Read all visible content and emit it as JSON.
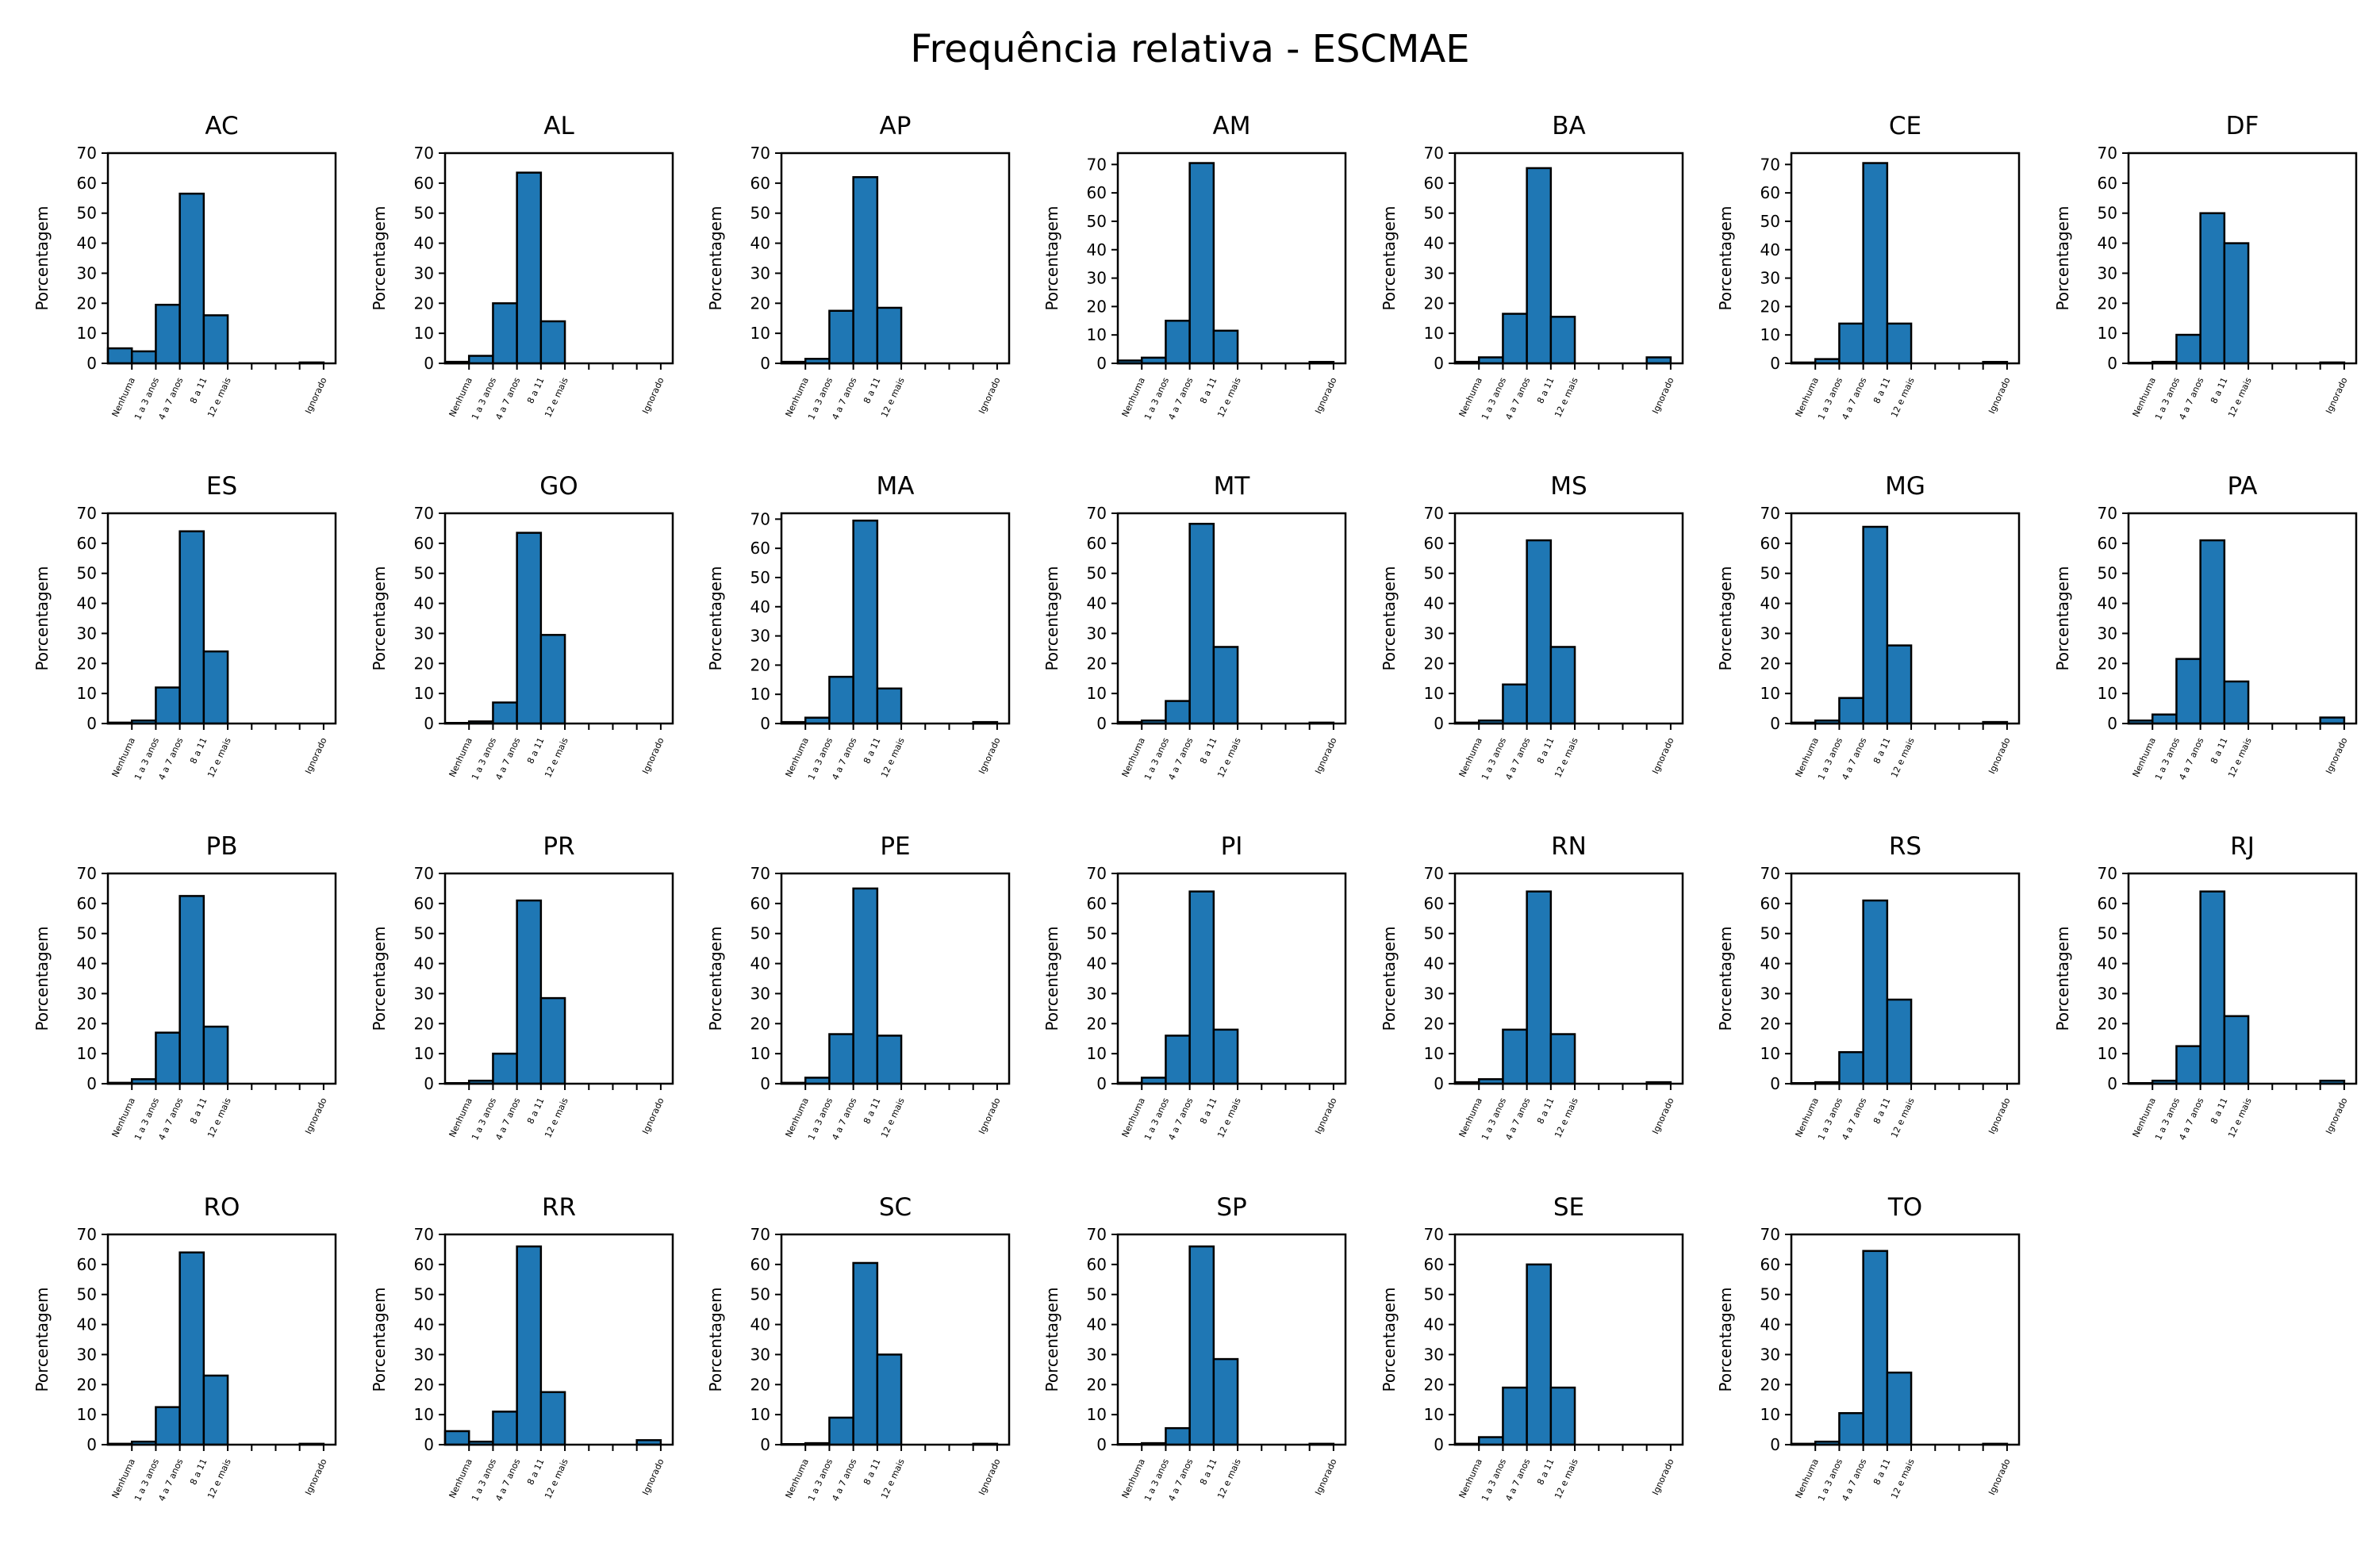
{
  "chart_data": {
    "type": "bar",
    "title": "Frequência relativa - ESCMAE",
    "ylabel": "Porcentagem",
    "xlabel": "",
    "bar_color": "#1f77b4",
    "edge_color": "#000000",
    "grid": false,
    "tick_labels": [
      "Nenhuma",
      "1 a 3 anos",
      "4 a 7 anos",
      "8 a 11",
      "12 e mais",
      "",
      "",
      "",
      "Ignorado"
    ],
    "tick_positions": [
      0,
      1,
      2,
      3,
      4,
      5,
      6,
      7,
      8
    ],
    "bar_positions": [
      -0.5,
      0.5,
      1.5,
      2.5,
      3.5,
      4.5,
      5.5,
      6.5,
      7.5
    ],
    "xlim": [
      -1,
      8.5
    ],
    "panels": [
      {
        "state": "AC",
        "ylim": [
          0,
          70
        ],
        "yticks": [
          0,
          10,
          20,
          30,
          40,
          50,
          60,
          70
        ],
        "values": [
          5,
          4,
          19.5,
          56.5,
          16,
          0,
          0,
          0,
          0.3
        ]
      },
      {
        "state": "AL",
        "ylim": [
          0,
          70
        ],
        "yticks": [
          0,
          10,
          20,
          30,
          40,
          50,
          60,
          70
        ],
        "values": [
          0.5,
          2.5,
          20,
          63.5,
          14,
          0,
          0,
          0,
          0
        ]
      },
      {
        "state": "AP",
        "ylim": [
          0,
          70
        ],
        "yticks": [
          0,
          10,
          20,
          30,
          40,
          50,
          60,
          70
        ],
        "values": [
          0.5,
          1.5,
          17.5,
          62,
          18.5,
          0,
          0,
          0,
          0
        ]
      },
      {
        "state": "AM",
        "ylim": [
          0,
          74
        ],
        "yticks": [
          0,
          10,
          20,
          30,
          40,
          50,
          60,
          70
        ],
        "values": [
          1,
          2,
          15,
          70.5,
          11.5,
          0,
          0,
          0,
          0.5
        ]
      },
      {
        "state": "BA",
        "ylim": [
          0,
          70
        ],
        "yticks": [
          0,
          10,
          20,
          30,
          40,
          50,
          60,
          70
        ],
        "values": [
          0.5,
          2,
          16.5,
          65,
          15.5,
          0,
          0,
          0,
          2
        ]
      },
      {
        "state": "CE",
        "ylim": [
          0,
          74
        ],
        "yticks": [
          0,
          10,
          20,
          30,
          40,
          50,
          60,
          70
        ],
        "values": [
          0.3,
          1.5,
          14,
          70.5,
          14,
          0,
          0,
          0,
          0.5
        ]
      },
      {
        "state": "DF",
        "ylim": [
          0,
          70
        ],
        "yticks": [
          0,
          10,
          20,
          30,
          40,
          50,
          60,
          70
        ],
        "values": [
          0.2,
          0.5,
          9.5,
          50,
          40,
          0,
          0,
          0,
          0.3
        ]
      },
      {
        "state": "ES",
        "ylim": [
          0,
          70
        ],
        "yticks": [
          0,
          10,
          20,
          30,
          40,
          50,
          60,
          70
        ],
        "values": [
          0.3,
          1,
          12,
          64,
          24,
          0,
          0,
          0,
          0
        ]
      },
      {
        "state": "GO",
        "ylim": [
          0,
          70
        ],
        "yticks": [
          0,
          10,
          20,
          30,
          40,
          50,
          60,
          70
        ],
        "values": [
          0.2,
          0.7,
          7,
          63.5,
          29.5,
          0,
          0,
          0,
          0
        ]
      },
      {
        "state": "MA",
        "ylim": [
          0,
          72
        ],
        "yticks": [
          0,
          10,
          20,
          30,
          40,
          50,
          60,
          70
        ],
        "values": [
          0.5,
          2,
          16,
          69.5,
          12,
          0,
          0,
          0,
          0.5
        ]
      },
      {
        "state": "MT",
        "ylim": [
          0,
          70
        ],
        "yticks": [
          0,
          10,
          20,
          30,
          40,
          50,
          60,
          70
        ],
        "values": [
          0.5,
          1,
          7.5,
          66.5,
          25.5,
          0,
          0,
          0,
          0.3
        ]
      },
      {
        "state": "MS",
        "ylim": [
          0,
          70
        ],
        "yticks": [
          0,
          10,
          20,
          30,
          40,
          50,
          60,
          70
        ],
        "values": [
          0.3,
          1,
          13,
          61,
          25.5,
          0,
          0,
          0,
          0
        ]
      },
      {
        "state": "MG",
        "ylim": [
          0,
          70
        ],
        "yticks": [
          0,
          10,
          20,
          30,
          40,
          50,
          60,
          70
        ],
        "values": [
          0.3,
          1,
          8.5,
          65.5,
          26,
          0,
          0,
          0,
          0.5
        ]
      },
      {
        "state": "PA",
        "ylim": [
          0,
          70
        ],
        "yticks": [
          0,
          10,
          20,
          30,
          40,
          50,
          60,
          70
        ],
        "values": [
          1,
          3,
          21.5,
          61,
          14,
          0,
          0,
          0,
          2
        ]
      },
      {
        "state": "PB",
        "ylim": [
          0,
          70
        ],
        "yticks": [
          0,
          10,
          20,
          30,
          40,
          50,
          60,
          70
        ],
        "values": [
          0.3,
          1.5,
          17,
          62.5,
          19,
          0,
          0,
          0,
          0
        ]
      },
      {
        "state": "PR",
        "ylim": [
          0,
          70
        ],
        "yticks": [
          0,
          10,
          20,
          30,
          40,
          50,
          60,
          70
        ],
        "values": [
          0.2,
          1,
          10,
          61,
          28.5,
          0,
          0,
          0,
          0
        ]
      },
      {
        "state": "PE",
        "ylim": [
          0,
          70
        ],
        "yticks": [
          0,
          10,
          20,
          30,
          40,
          50,
          60,
          70
        ],
        "values": [
          0.3,
          2,
          16.5,
          65,
          16,
          0,
          0,
          0,
          0
        ]
      },
      {
        "state": "PI",
        "ylim": [
          0,
          70
        ],
        "yticks": [
          0,
          10,
          20,
          30,
          40,
          50,
          60,
          70
        ],
        "values": [
          0.3,
          2,
          16,
          64,
          18,
          0,
          0,
          0,
          0
        ]
      },
      {
        "state": "RN",
        "ylim": [
          0,
          70
        ],
        "yticks": [
          0,
          10,
          20,
          30,
          40,
          50,
          60,
          70
        ],
        "values": [
          0.5,
          1.5,
          18,
          64,
          16.5,
          0,
          0,
          0,
          0.5
        ]
      },
      {
        "state": "RS",
        "ylim": [
          0,
          70
        ],
        "yticks": [
          0,
          10,
          20,
          30,
          40,
          50,
          60,
          70
        ],
        "values": [
          0.2,
          0.5,
          10.5,
          61,
          28,
          0,
          0,
          0,
          0
        ]
      },
      {
        "state": "RJ",
        "ylim": [
          0,
          70
        ],
        "yticks": [
          0,
          10,
          20,
          30,
          40,
          50,
          60,
          70
        ],
        "values": [
          0.2,
          1,
          12.5,
          64,
          22.5,
          0,
          0,
          0,
          1
        ]
      },
      {
        "state": "RO",
        "ylim": [
          0,
          70
        ],
        "yticks": [
          0,
          10,
          20,
          30,
          40,
          50,
          60,
          70
        ],
        "values": [
          0.3,
          1,
          12.5,
          64,
          23,
          0,
          0,
          0,
          0.3
        ]
      },
      {
        "state": "RR",
        "ylim": [
          0,
          70
        ],
        "yticks": [
          0,
          10,
          20,
          30,
          40,
          50,
          60,
          70
        ],
        "values": [
          4.5,
          1,
          11,
          66,
          17.5,
          0,
          0,
          0,
          1.5
        ]
      },
      {
        "state": "SC",
        "ylim": [
          0,
          70
        ],
        "yticks": [
          0,
          10,
          20,
          30,
          40,
          50,
          60,
          70
        ],
        "values": [
          0.2,
          0.5,
          9,
          60.5,
          30,
          0,
          0,
          0,
          0.3
        ]
      },
      {
        "state": "SP",
        "ylim": [
          0,
          70
        ],
        "yticks": [
          0,
          10,
          20,
          30,
          40,
          50,
          60,
          70
        ],
        "values": [
          0.2,
          0.5,
          5.5,
          66,
          28.5,
          0,
          0,
          0,
          0.3
        ]
      },
      {
        "state": "SE",
        "ylim": [
          0,
          70
        ],
        "yticks": [
          0,
          10,
          20,
          30,
          40,
          50,
          60,
          70
        ],
        "values": [
          0.3,
          2.5,
          19,
          60,
          19,
          0,
          0,
          0,
          0
        ]
      },
      {
        "state": "TO",
        "ylim": [
          0,
          70
        ],
        "yticks": [
          0,
          10,
          20,
          30,
          40,
          50,
          60,
          70
        ],
        "values": [
          0.3,
          1,
          10.5,
          64.5,
          24,
          0,
          0,
          0,
          0.3
        ]
      }
    ]
  }
}
